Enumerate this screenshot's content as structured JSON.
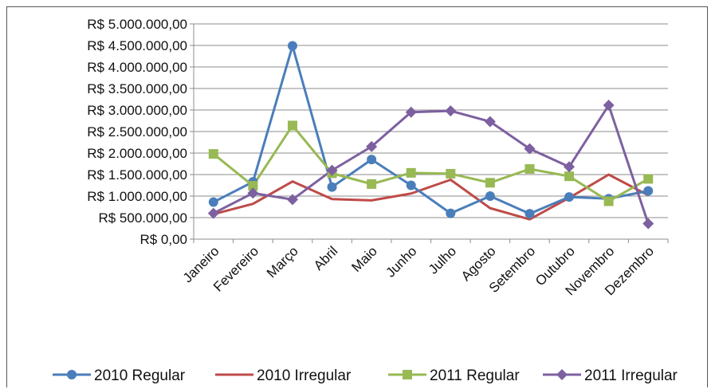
{
  "chart_data": {
    "type": "line",
    "categories": [
      "Janeiro",
      "Fevereiro",
      "Março",
      "Abril",
      "Maio",
      "Junho",
      "Julho",
      "Agosto",
      "Setembro",
      "Outubro",
      "Novembro",
      "Dezembro"
    ],
    "ylim": [
      0,
      5000000
    ],
    "yticks": [
      0,
      500000,
      1000000,
      1500000,
      2000000,
      2500000,
      3000000,
      3500000,
      4000000,
      4500000,
      5000000
    ],
    "ytick_labels": [
      "R$ 0,00",
      "R$ 500.000,00",
      "R$ 1.000.000,00",
      "R$ 1.500.000,00",
      "R$ 2.000.000,00",
      "R$ 2.500.000,00",
      "R$ 3.000.000,00",
      "R$ 3.500.000,00",
      "R$ 4.000.000,00",
      "R$ 4.500.000,00",
      "R$ 5.000.000,00"
    ],
    "grid": true,
    "legend_position": "bottom",
    "series": [
      {
        "name": "2010 Regular",
        "color": "#4a7ebb",
        "marker": "circle",
        "values": [
          860000,
          1330000,
          4490000,
          1210000,
          1850000,
          1250000,
          600000,
          1000000,
          590000,
          980000,
          940000,
          1120000
        ]
      },
      {
        "name": "2010 Irregular",
        "color": "#be4b48",
        "marker": "none",
        "values": [
          580000,
          820000,
          1340000,
          930000,
          900000,
          1060000,
          1380000,
          720000,
          460000,
          960000,
          1500000,
          1020000
        ]
      },
      {
        "name": "2011 Regular",
        "color": "#98b954",
        "marker": "square",
        "values": [
          1980000,
          1240000,
          2640000,
          1530000,
          1280000,
          1540000,
          1520000,
          1310000,
          1630000,
          1460000,
          880000,
          1400000
        ]
      },
      {
        "name": "2011 Irregular",
        "color": "#7d60a0",
        "marker": "diamond",
        "values": [
          600000,
          1070000,
          920000,
          1600000,
          2150000,
          2950000,
          2980000,
          2730000,
          2100000,
          1680000,
          3110000,
          360000
        ]
      }
    ]
  }
}
